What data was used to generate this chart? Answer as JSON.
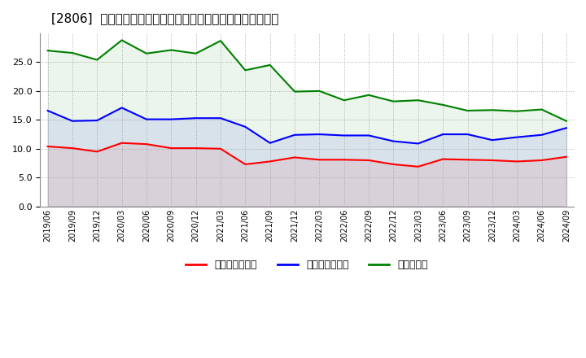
{
  "title": "[2806]  売上債権回転率、買入債務回転率、在庫回転率の推移",
  "xlabel": "",
  "ylabel": "",
  "ylim": [
    0,
    30
  ],
  "yticks": [
    0.0,
    5.0,
    10.0,
    15.0,
    20.0,
    25.0
  ],
  "x_labels": [
    "2019/06",
    "2019/09",
    "2019/12",
    "2020/03",
    "2020/06",
    "2020/09",
    "2020/12",
    "2021/03",
    "2021/06",
    "2021/09",
    "2021/12",
    "2022/03",
    "2022/06",
    "2022/09",
    "2022/12",
    "2023/03",
    "2023/06",
    "2023/09",
    "2023/12",
    "2024/03",
    "2024/06",
    "2024/09"
  ],
  "receivables_turnover": [
    10.4,
    10.1,
    9.5,
    11.0,
    10.8,
    10.1,
    10.1,
    10.0,
    7.3,
    7.8,
    8.5,
    8.1,
    8.1,
    8.0,
    7.3,
    6.9,
    8.2,
    8.1,
    8.0,
    7.8,
    8.0,
    8.6
  ],
  "payables_turnover": [
    16.6,
    14.8,
    14.9,
    17.1,
    15.1,
    15.1,
    15.3,
    15.3,
    13.8,
    11.0,
    12.4,
    12.5,
    12.3,
    12.3,
    11.3,
    10.9,
    12.5,
    12.5,
    11.5,
    12.0,
    12.4,
    13.6
  ],
  "inventory_turnover": [
    27.0,
    26.6,
    25.4,
    28.8,
    26.5,
    27.1,
    26.5,
    28.7,
    23.6,
    24.5,
    19.9,
    20.0,
    18.4,
    19.3,
    18.2,
    18.4,
    17.6,
    16.6,
    16.7,
    16.5,
    16.8,
    14.8
  ],
  "color_receivables": "#FF0000",
  "color_payables": "#0000FF",
  "color_inventory": "#008000",
  "legend_labels": [
    "売上債権回転率",
    "買入債務回転率",
    "在庫回転率"
  ],
  "background_color": "#ffffff",
  "grid_color": "#aaaaaa"
}
